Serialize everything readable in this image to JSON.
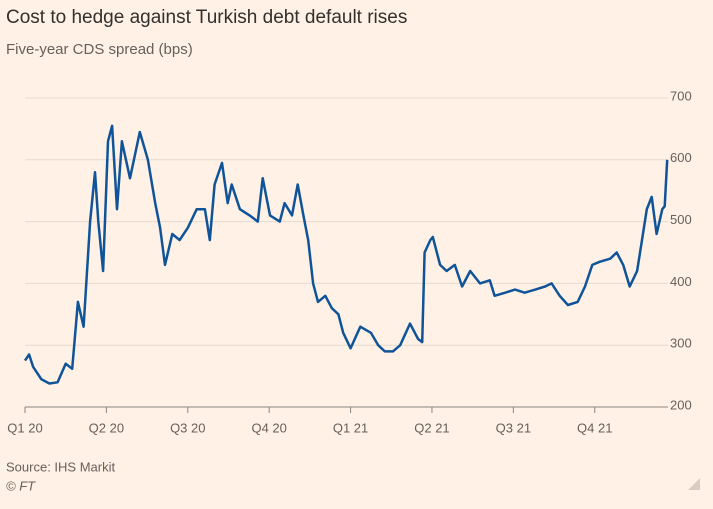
{
  "chart_data": {
    "type": "line",
    "title": "Cost to hedge against Turkish debt default rises",
    "subtitle": "Five-year CDS spread (bps)",
    "source": "Source: IHS Markit",
    "credit": "© FT",
    "color": "#0f5499",
    "x": [
      0,
      0.05,
      0.1,
      0.2,
      0.3,
      0.4,
      0.5,
      0.58,
      0.65,
      0.72,
      0.8,
      0.86,
      0.9,
      0.96,
      1.02,
      1.07,
      1.13,
      1.19,
      1.29,
      1.41,
      1.51,
      1.6,
      1.66,
      1.72,
      1.81,
      1.9,
      2.0,
      2.11,
      2.21,
      2.27,
      2.33,
      2.42,
      2.49,
      2.54,
      2.64,
      2.76,
      2.86,
      2.92,
      3.01,
      3.13,
      3.19,
      3.28,
      3.35,
      3.42,
      3.48,
      3.54,
      3.6,
      3.69,
      3.77,
      3.85,
      3.91,
      4.0,
      4.12,
      4.25,
      4.34,
      4.42,
      4.52,
      4.61,
      4.73,
      4.83,
      4.88,
      4.91,
      4.98,
      5.01,
      5.1,
      5.18,
      5.28,
      5.37,
      5.47,
      5.59,
      5.71,
      5.77,
      5.9,
      6.02,
      6.14,
      6.27,
      6.39,
      6.47,
      6.57,
      6.67,
      6.79,
      6.88,
      6.97,
      7.06,
      7.19,
      7.27,
      7.35,
      7.43,
      7.52,
      7.58,
      7.64,
      7.7,
      7.76,
      7.83,
      7.86,
      7.89
    ],
    "values": [
      275,
      285,
      265,
      245,
      238,
      240,
      270,
      262,
      370,
      330,
      500,
      580,
      500,
      420,
      630,
      655,
      520,
      630,
      570,
      645,
      600,
      530,
      490,
      430,
      480,
      470,
      490,
      520,
      520,
      470,
      560,
      595,
      530,
      560,
      520,
      510,
      500,
      570,
      510,
      500,
      530,
      510,
      560,
      510,
      470,
      400,
      370,
      380,
      360,
      350,
      320,
      295,
      330,
      320,
      300,
      290,
      290,
      300,
      335,
      310,
      305,
      450,
      470,
      475,
      430,
      420,
      430,
      395,
      420,
      400,
      405,
      380,
      385,
      390,
      385,
      390,
      395,
      400,
      380,
      365,
      370,
      395,
      430,
      435,
      440,
      450,
      430,
      395,
      420,
      470,
      520,
      540,
      480,
      520,
      525,
      600
    ],
    "xlim": [
      0,
      7.9
    ],
    "xticks": [
      {
        "value": 0,
        "label": "Q1 20"
      },
      {
        "value": 1,
        "label": "Q2 20"
      },
      {
        "value": 2,
        "label": "Q3 20"
      },
      {
        "value": 3,
        "label": "Q4 20"
      },
      {
        "value": 4,
        "label": "Q1 21"
      },
      {
        "value": 5,
        "label": "Q2 21"
      },
      {
        "value": 6,
        "label": "Q3 21"
      },
      {
        "value": 7,
        "label": "Q4 21"
      }
    ],
    "ylim": [
      200,
      700
    ],
    "yticks": [
      200,
      300,
      400,
      500,
      600,
      700
    ],
    "grid": true
  }
}
